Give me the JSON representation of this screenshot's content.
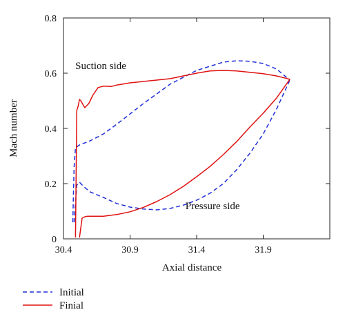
{
  "chart_data": {
    "type": "line",
    "title": "",
    "xlabel": "Axial distance",
    "ylabel": "Mach number",
    "xlim": [
      30.4,
      32.4
    ],
    "ylim": [
      0,
      0.8
    ],
    "xticks": [
      30.4,
      30.9,
      31.4,
      31.9
    ],
    "xtick_labels": [
      "30.4",
      "30.9",
      "31.4",
      "31.9"
    ],
    "yticks": [
      0,
      0.2,
      0.4,
      0.6,
      0.8
    ],
    "ytick_labels": [
      "0",
      "0.2",
      "0.4",
      "0.6",
      "0.8"
    ],
    "grid": false,
    "legend_position": "bottom-left, below plot",
    "annotations": [
      {
        "text": "Suction side",
        "x": 30.68,
        "y": 0.615
      },
      {
        "text": "Pressure side",
        "x": 31.52,
        "y": 0.108
      }
    ],
    "series": [
      {
        "name": "Initial",
        "color": "#1f2fd6",
        "dash": "dashed",
        "segments": [
          {
            "label": "suction",
            "x": [
              30.47,
              30.48,
              30.49,
              30.52,
              30.6,
              30.7,
              30.8,
              31.0,
              31.2,
              31.4,
              31.6,
              31.7,
              31.8,
              31.9,
              32.0,
              32.1
            ],
            "y": [
              0.06,
              0.26,
              0.33,
              0.34,
              0.355,
              0.38,
              0.415,
              0.49,
              0.56,
              0.61,
              0.64,
              0.645,
              0.643,
              0.635,
              0.615,
              0.575
            ]
          },
          {
            "label": "pressure",
            "x": [
              30.48,
              30.5,
              30.52,
              30.55,
              30.6,
              30.7,
              30.8,
              30.9,
              31.0,
              31.1,
              31.2,
              31.3,
              31.4,
              31.5,
              31.6,
              31.7,
              31.8,
              31.9,
              32.0,
              32.1
            ],
            "y": [
              0.06,
              0.195,
              0.205,
              0.19,
              0.17,
              0.15,
              0.128,
              0.115,
              0.108,
              0.105,
              0.11,
              0.122,
              0.14,
              0.165,
              0.2,
              0.25,
              0.31,
              0.38,
              0.47,
              0.575
            ]
          }
        ]
      },
      {
        "name": "Finial",
        "color": "#e01010",
        "dash": "solid",
        "segments": [
          {
            "label": "suction",
            "x": [
              30.49,
              30.5,
              30.51,
              30.52,
              30.53,
              30.56,
              30.59,
              30.62,
              30.66,
              30.7,
              30.76,
              30.8,
              30.9,
              31.0,
              31.1,
              31.2,
              31.3,
              31.4,
              31.5,
              31.6,
              31.7,
              31.8,
              31.9,
              32.0,
              32.1
            ],
            "y": [
              0.005,
              0.465,
              0.48,
              0.505,
              0.5,
              0.475,
              0.49,
              0.52,
              0.548,
              0.553,
              0.552,
              0.557,
              0.565,
              0.57,
              0.575,
              0.58,
              0.59,
              0.6,
              0.608,
              0.61,
              0.608,
              0.603,
              0.598,
              0.59,
              0.578
            ]
          },
          {
            "label": "pressure",
            "x": [
              30.52,
              30.54,
              30.56,
              30.58,
              30.6,
              30.7,
              30.8,
              30.9,
              31.0,
              31.1,
              31.2,
              31.3,
              31.4,
              31.5,
              31.6,
              31.7,
              31.8,
              31.9,
              32.0,
              32.1
            ],
            "y": [
              0.005,
              0.075,
              0.08,
              0.082,
              0.082,
              0.082,
              0.088,
              0.098,
              0.114,
              0.135,
              0.16,
              0.19,
              0.225,
              0.262,
              0.305,
              0.352,
              0.405,
              0.455,
              0.51,
              0.578
            ]
          }
        ]
      }
    ]
  }
}
